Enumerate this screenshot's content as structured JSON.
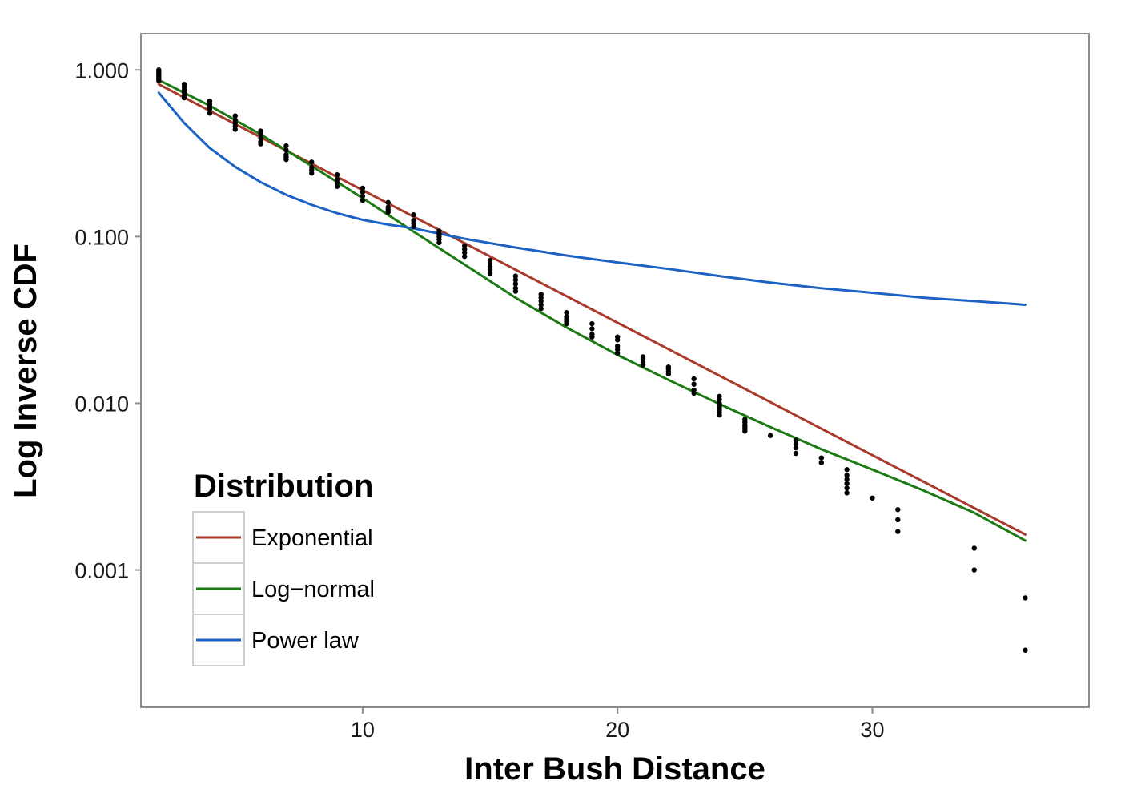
{
  "chart_data": {
    "type": "scatter",
    "title": "",
    "xlabel": "Inter Bush Distance",
    "ylabel": "Log Inverse CDF",
    "xlim": [
      1.3,
      38.5
    ],
    "ylim": [
      0.00015,
      1.65
    ],
    "yscale": "log",
    "grid": false,
    "x_ticks": [
      10,
      20,
      30
    ],
    "x_tick_labels": [
      "10",
      "20",
      "30"
    ],
    "y_ticks": [
      1,
      0.1,
      0.01,
      0.001
    ],
    "y_tick_labels": [
      "1.000",
      "0.100",
      "0.010",
      "0.001"
    ],
    "legend": {
      "title": "Distribution",
      "placement": "bottom-left",
      "entries": [
        "Exponential",
        "Log−normal",
        "Power law"
      ]
    },
    "points": {
      "color": "#000000",
      "x": [
        2,
        2,
        2,
        2,
        2,
        2,
        2,
        2,
        3,
        3,
        3,
        3,
        3,
        3,
        4,
        4,
        4,
        4,
        4,
        5,
        5,
        5,
        5,
        5,
        6,
        6,
        6,
        6,
        6,
        7,
        7,
        7,
        7,
        7,
        8,
        8,
        8,
        8,
        9,
        9,
        9,
        9,
        10,
        10,
        10,
        10,
        11,
        11,
        11,
        11,
        12,
        12,
        12,
        12,
        13,
        13,
        13,
        13,
        13,
        14,
        14,
        14,
        14,
        15,
        15,
        15,
        15,
        15,
        16,
        16,
        16,
        16,
        16,
        17,
        17,
        17,
        17,
        17,
        18,
        18,
        18,
        18,
        18,
        19,
        19,
        19,
        19,
        20,
        20,
        20,
        20,
        20,
        21,
        21,
        21,
        21,
        22,
        22,
        22,
        22,
        23,
        23,
        23,
        23,
        24,
        24,
        24,
        24,
        24,
        24,
        24,
        24,
        25,
        25,
        25,
        25,
        25,
        25,
        26,
        27,
        27,
        27,
        27,
        28,
        28,
        29,
        29,
        29,
        29,
        29,
        29,
        30,
        31,
        31,
        31,
        34,
        34,
        36,
        36
      ],
      "y": [
        1.0,
        0.98,
        0.96,
        0.94,
        0.92,
        0.9,
        0.88,
        0.86,
        0.82,
        0.79,
        0.76,
        0.73,
        0.7,
        0.68,
        0.65,
        0.62,
        0.6,
        0.58,
        0.55,
        0.53,
        0.5,
        0.48,
        0.46,
        0.44,
        0.43,
        0.41,
        0.39,
        0.37,
        0.36,
        0.35,
        0.33,
        0.31,
        0.3,
        0.29,
        0.28,
        0.26,
        0.25,
        0.24,
        0.235,
        0.22,
        0.21,
        0.2,
        0.195,
        0.185,
        0.175,
        0.165,
        0.16,
        0.15,
        0.145,
        0.14,
        0.135,
        0.125,
        0.12,
        0.115,
        0.108,
        0.104,
        0.1,
        0.096,
        0.092,
        0.088,
        0.084,
        0.08,
        0.076,
        0.072,
        0.069,
        0.066,
        0.063,
        0.06,
        0.058,
        0.055,
        0.052,
        0.049,
        0.047,
        0.045,
        0.043,
        0.041,
        0.039,
        0.037,
        0.035,
        0.033,
        0.032,
        0.031,
        0.03,
        0.03,
        0.028,
        0.026,
        0.025,
        0.025,
        0.024,
        0.022,
        0.021,
        0.02,
        0.019,
        0.0185,
        0.0175,
        0.017,
        0.0165,
        0.016,
        0.0155,
        0.015,
        0.014,
        0.013,
        0.012,
        0.0115,
        0.011,
        0.0105,
        0.01,
        0.0097,
        0.0094,
        0.0091,
        0.0088,
        0.0085,
        0.008,
        0.0077,
        0.0074,
        0.0072,
        0.007,
        0.0068,
        0.0064,
        0.006,
        0.0057,
        0.0054,
        0.005,
        0.0047,
        0.0044,
        0.004,
        0.0037,
        0.0035,
        0.0033,
        0.0031,
        0.0029,
        0.0027,
        0.0023,
        0.002,
        0.0017,
        0.00135,
        0.001,
        0.00068,
        0.00033
      ]
    },
    "series": [
      {
        "name": "Exponential",
        "color": "#a93a2c",
        "x": [
          2,
          36
        ],
        "y": [
          0.82,
          0.00163
        ]
      },
      {
        "name": "Log−normal",
        "color": "#1b7a14",
        "x": [
          2,
          4,
          6,
          8,
          10,
          12,
          14,
          16,
          18,
          20,
          22,
          24,
          26,
          28,
          30,
          32,
          34,
          36
        ],
        "y": [
          0.87,
          0.61,
          0.41,
          0.265,
          0.17,
          0.107,
          0.068,
          0.043,
          0.0285,
          0.0195,
          0.0138,
          0.0099,
          0.0072,
          0.0053,
          0.004,
          0.003,
          0.0022,
          0.0015
        ]
      },
      {
        "name": "Power law",
        "color": "#1b62c4",
        "x": [
          2,
          3,
          4,
          5,
          6,
          7,
          8,
          9,
          10,
          11,
          12,
          14,
          16,
          18,
          20,
          22,
          24,
          26,
          28,
          30,
          32,
          34,
          36
        ],
        "y": [
          0.73,
          0.48,
          0.34,
          0.262,
          0.212,
          0.178,
          0.155,
          0.138,
          0.126,
          0.118,
          0.112,
          0.097,
          0.086,
          0.077,
          0.07,
          0.064,
          0.058,
          0.053,
          0.049,
          0.046,
          0.043,
          0.041,
          0.039
        ]
      }
    ]
  }
}
